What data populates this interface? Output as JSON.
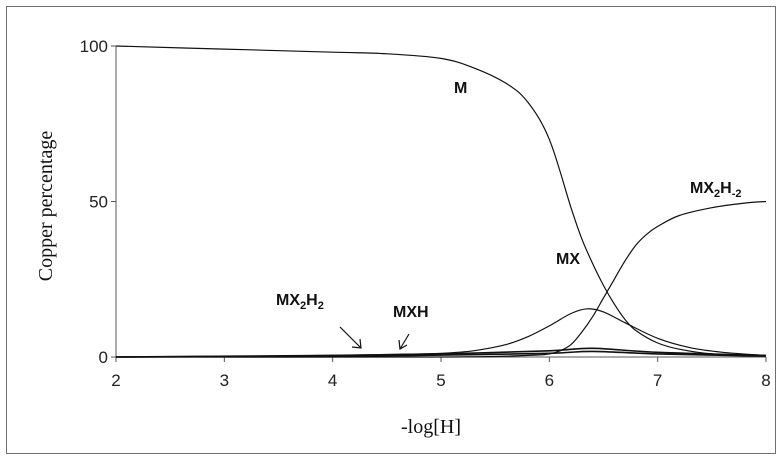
{
  "chart_data": {
    "type": "line",
    "title": "",
    "xlabel": "-log[H]",
    "ylabel": "Copper percentage",
    "xlim": [
      2,
      8
    ],
    "ylim": [
      0,
      100
    ],
    "x_ticks": [
      "2",
      "3",
      "4",
      "5",
      "6",
      "7",
      "8"
    ],
    "y_ticks": [
      "0",
      "50",
      "100"
    ],
    "grid": false,
    "legend": "none",
    "line_color": "#111111",
    "series": [
      {
        "name": "M",
        "x": [
          2.0,
          3.0,
          4.0,
          4.5,
          5.0,
          5.3,
          5.6,
          5.8,
          6.0,
          6.2,
          6.3,
          6.4,
          6.5,
          6.6,
          6.7,
          6.8,
          7.0,
          7.2,
          7.5,
          8.0
        ],
        "y": [
          100,
          99,
          98,
          97.5,
          96,
          93,
          88,
          82,
          70,
          48,
          38,
          30,
          23,
          17,
          12,
          8.5,
          4.5,
          2.5,
          1,
          0.3
        ]
      },
      {
        "name": "MX",
        "x": [
          2.0,
          3.0,
          4.0,
          4.5,
          5.0,
          5.3,
          5.6,
          5.8,
          6.0,
          6.2,
          6.35,
          6.5,
          6.7,
          7.0,
          7.3,
          7.6,
          8.0
        ],
        "y": [
          0,
          0.2,
          0.5,
          0.8,
          1.2,
          2,
          4,
          6.5,
          10,
          14,
          15.5,
          14.5,
          11,
          6,
          3,
          1.5,
          0.5
        ]
      },
      {
        "name": "MX2H-2",
        "x": [
          2.0,
          5.0,
          5.8,
          6.0,
          6.1,
          6.2,
          6.3,
          6.4,
          6.5,
          6.6,
          6.7,
          6.8,
          6.9,
          7.0,
          7.2,
          7.5,
          7.8,
          8.0
        ],
        "y": [
          0,
          0,
          0.5,
          1,
          2,
          4,
          8,
          13,
          19,
          25,
          31,
          36,
          39.5,
          42,
          45.5,
          48,
          49.5,
          50
        ]
      },
      {
        "name": "MXH",
        "x": [
          2.0,
          4.0,
          5.0,
          6.0,
          6.4,
          7.0,
          8.0
        ],
        "y": [
          0,
          0.5,
          1,
          2,
          2.8,
          1.5,
          0.5
        ]
      },
      {
        "name": "MX2H2",
        "x": [
          2.0,
          4.0,
          5.0,
          6.0,
          6.4,
          7.0,
          8.0
        ],
        "y": [
          0,
          0.3,
          0.6,
          1.2,
          1.8,
          1,
          0.3
        ]
      }
    ]
  },
  "annotations": {
    "m": {
      "label": "M"
    },
    "mx": {
      "label": "MX"
    },
    "mx2h2": {
      "label_main": "MX",
      "sub1": "2",
      "mid": "H",
      "sub2": "2"
    },
    "mxh": {
      "label": "MXH"
    },
    "mx2hm2": {
      "label_main": "MX",
      "sub1": "2",
      "mid": "H",
      "sub2": "-2"
    }
  }
}
